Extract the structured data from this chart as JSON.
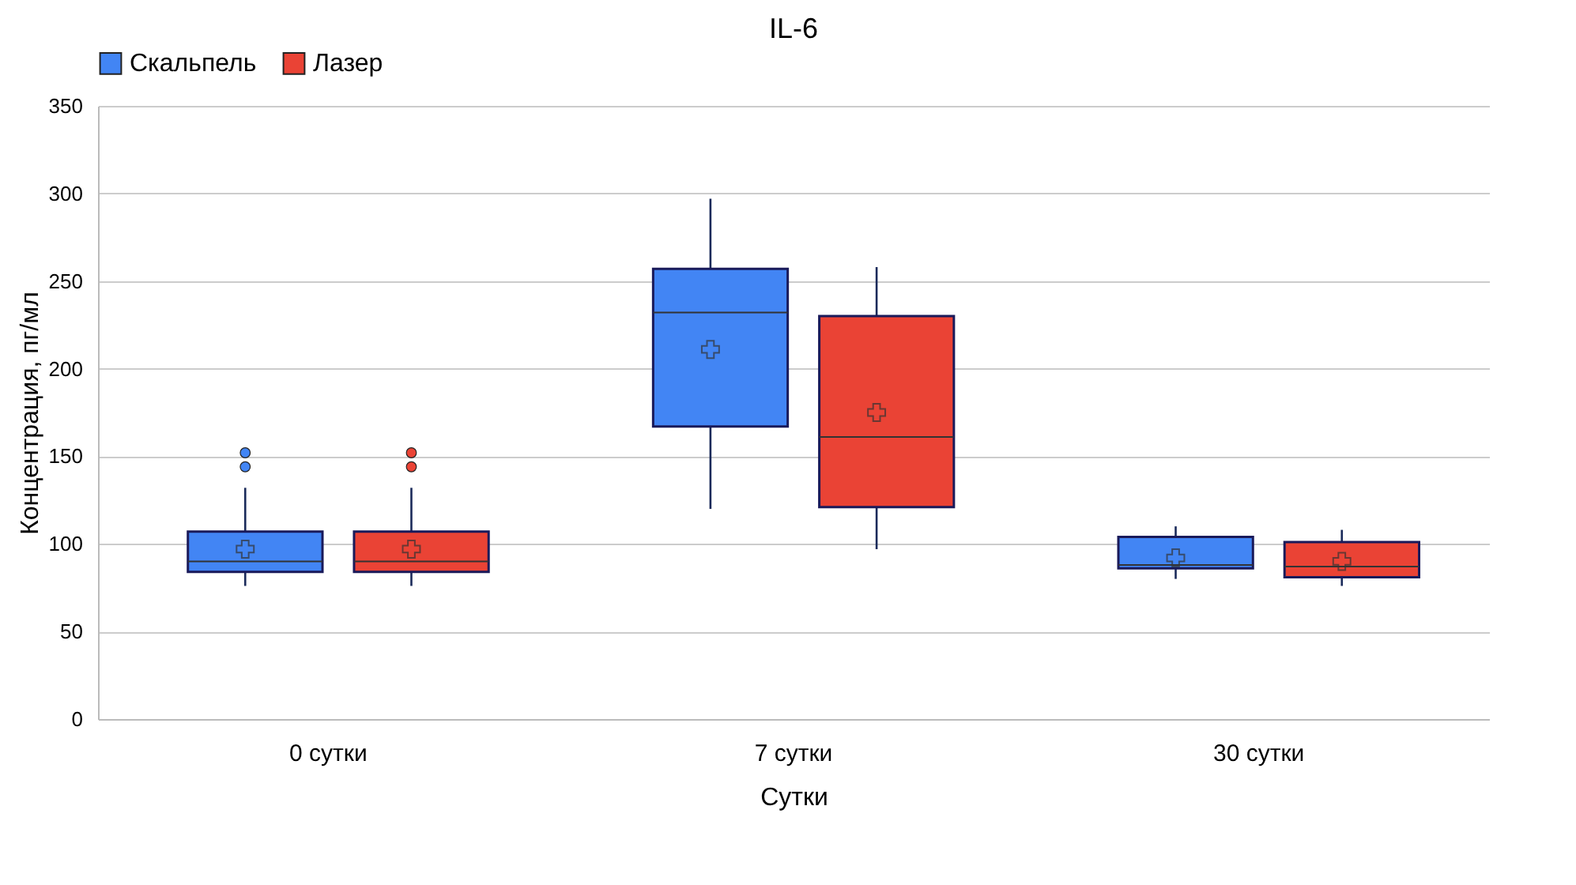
{
  "chart_data": {
    "type": "box",
    "title": "IL-6",
    "xlabel": "Сутки",
    "ylabel": "Концентрация, пг/мл",
    "categories": [
      "0 сутки",
      "7 сутки",
      "30 сутки"
    ],
    "series": [
      {
        "name": "Скальпель",
        "color": "#4285f4",
        "boxes": [
          {
            "low": 76,
            "q1": 84,
            "median": 90,
            "q3": 107,
            "high": 132,
            "mean": 97,
            "outliers": [
              144,
              152
            ]
          },
          {
            "low": 120,
            "q1": 167,
            "median": 232,
            "q3": 257,
            "high": 297,
            "mean": 211
          },
          {
            "low": 80,
            "q1": 86,
            "median": 88,
            "q3": 104,
            "high": 110,
            "mean": 92
          }
        ]
      },
      {
        "name": "Лазер",
        "color": "#ea4335",
        "boxes": [
          {
            "low": 76,
            "q1": 84,
            "median": 90,
            "q3": 107,
            "high": 132,
            "mean": 97,
            "outliers": [
              144,
              152
            ]
          },
          {
            "low": 97,
            "q1": 121,
            "median": 161,
            "q3": 230,
            "high": 258,
            "mean": 175
          },
          {
            "low": 76,
            "q1": 81,
            "median": 87,
            "q3": 101,
            "high": 108,
            "mean": 90
          }
        ]
      }
    ],
    "ylim": [
      0,
      350
    ],
    "yticks": [
      0,
      50,
      100,
      150,
      200,
      250,
      300,
      350
    ],
    "grid": "y",
    "legend": "top",
    "marker": "cross"
  }
}
